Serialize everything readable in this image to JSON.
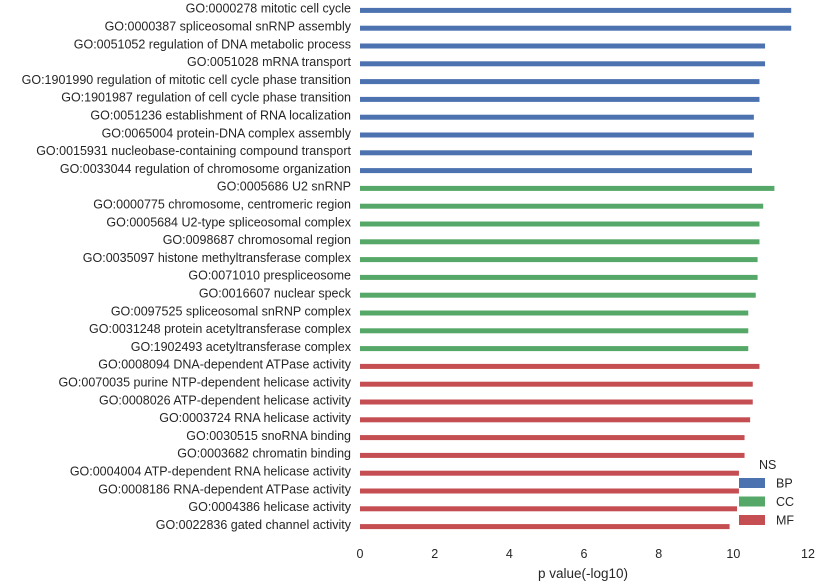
{
  "chart_data": {
    "type": "bar",
    "orientation": "horizontal",
    "xlabel": "p value(-log10)",
    "xlim": [
      0,
      12
    ],
    "xticks": [
      0,
      2,
      4,
      6,
      8,
      10,
      12
    ],
    "grid": false,
    "legend": {
      "title": "NS",
      "placement": "bottom-right",
      "entries": [
        {
          "label": "BP",
          "color": "#4c72b0"
        },
        {
          "label": "CC",
          "color": "#55a868"
        },
        {
          "label": "MF",
          "color": "#c44e52"
        }
      ]
    },
    "bars": [
      {
        "label": "GO:0000278 mitotic cell cycle",
        "value": 11.55,
        "group": "BP"
      },
      {
        "label": "GO:0000387 spliceosomal snRNP assembly",
        "value": 11.55,
        "group": "BP"
      },
      {
        "label": "GO:0051052 regulation of DNA metabolic process",
        "value": 10.85,
        "group": "BP"
      },
      {
        "label": "GO:0051028 mRNA transport",
        "value": 10.85,
        "group": "BP"
      },
      {
        "label": "GO:1901990 regulation of mitotic cell cycle phase transition",
        "value": 10.7,
        "group": "BP"
      },
      {
        "label": "GO:1901987 regulation of cell cycle phase transition",
        "value": 10.7,
        "group": "BP"
      },
      {
        "label": "GO:0051236 establishment of RNA localization",
        "value": 10.55,
        "group": "BP"
      },
      {
        "label": "GO:0065004 protein-DNA complex assembly",
        "value": 10.55,
        "group": "BP"
      },
      {
        "label": "GO:0015931 nucleobase-containing compound transport",
        "value": 10.5,
        "group": "BP"
      },
      {
        "label": "GO:0033044 regulation of chromosome organization",
        "value": 10.5,
        "group": "BP"
      },
      {
        "label": "GO:0005686 U2 snRNP",
        "value": 11.1,
        "group": "CC"
      },
      {
        "label": "GO:0000775 chromosome, centromeric region",
        "value": 10.8,
        "group": "CC"
      },
      {
        "label": "GO:0005684 U2-type spliceosomal complex",
        "value": 10.7,
        "group": "CC"
      },
      {
        "label": "GO:0098687 chromosomal region",
        "value": 10.7,
        "group": "CC"
      },
      {
        "label": "GO:0035097 histone methyltransferase complex",
        "value": 10.65,
        "group": "CC"
      },
      {
        "label": "GO:0071010 prespliceosome",
        "value": 10.65,
        "group": "CC"
      },
      {
        "label": "GO:0016607 nuclear speck",
        "value": 10.6,
        "group": "CC"
      },
      {
        "label": "GO:0097525 spliceosomal snRNP complex",
        "value": 10.4,
        "group": "CC"
      },
      {
        "label": "GO:0031248 protein acetyltransferase complex",
        "value": 10.4,
        "group": "CC"
      },
      {
        "label": "GO:1902493 acetyltransferase complex",
        "value": 10.4,
        "group": "CC"
      },
      {
        "label": "GO:0008094 DNA-dependent ATPase activity",
        "value": 10.7,
        "group": "MF"
      },
      {
        "label": "GO:0070035 purine NTP-dependent helicase activity",
        "value": 10.52,
        "group": "MF"
      },
      {
        "label": "GO:0008026 ATP-dependent helicase activity",
        "value": 10.52,
        "group": "MF"
      },
      {
        "label": "GO:0003724 RNA helicase activity",
        "value": 10.45,
        "group": "MF"
      },
      {
        "label": "GO:0030515 snoRNA binding",
        "value": 10.3,
        "group": "MF"
      },
      {
        "label": "GO:0003682 chromatin binding",
        "value": 10.3,
        "group": "MF"
      },
      {
        "label": "GO:0004004 ATP-dependent RNA helicase activity",
        "value": 10.15,
        "group": "MF"
      },
      {
        "label": "GO:0008186 RNA-dependent ATPase activity",
        "value": 10.15,
        "group": "MF"
      },
      {
        "label": "GO:0004386 helicase activity",
        "value": 10.1,
        "group": "MF"
      },
      {
        "label": "GO:0022836 gated channel activity",
        "value": 9.9,
        "group": "MF"
      }
    ]
  }
}
